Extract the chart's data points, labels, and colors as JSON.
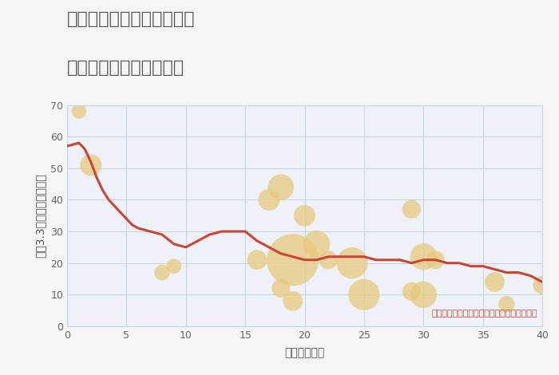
{
  "title_line1": "兵庫県豊岡市出石町桐野の",
  "title_line2": "築年数別中古戸建て価格",
  "xlabel": "築年数（年）",
  "ylabel": "坪（3.3㎡）単価（万円）",
  "background_color": "#f5f5f5",
  "plot_bg_color": "#eef2f8",
  "line_color": "#cc4433",
  "line_x": [
    0,
    0.5,
    1,
    1.5,
    2,
    2.5,
    3,
    3.5,
    4,
    4.5,
    5,
    5.5,
    6,
    7,
    8,
    9,
    10,
    11,
    12,
    13,
    14,
    15,
    16,
    17,
    18,
    19,
    20,
    21,
    22,
    23,
    24,
    25,
    26,
    27,
    28,
    29,
    30,
    31,
    32,
    33,
    34,
    35,
    36,
    37,
    38,
    39,
    40
  ],
  "line_y": [
    57,
    57.5,
    58,
    56,
    52,
    47,
    43,
    40,
    38,
    36,
    34,
    32,
    31,
    30,
    29,
    26,
    25,
    27,
    29,
    30,
    30,
    30,
    27,
    25,
    23,
    22,
    21,
    21,
    22,
    22,
    22,
    22,
    21,
    21,
    21,
    20,
    21,
    21,
    20,
    20,
    19,
    19,
    18,
    17,
    17,
    16,
    14
  ],
  "scatter_x": [
    1,
    2,
    8,
    9,
    16,
    17,
    18,
    18,
    19,
    19,
    20,
    21,
    22,
    24,
    25,
    29,
    29,
    30,
    30,
    31,
    36,
    37,
    40
  ],
  "scatter_y": [
    68,
    51,
    17,
    19,
    21,
    40,
    44,
    12,
    21,
    8,
    35,
    26,
    21,
    20,
    10,
    37,
    11,
    22,
    10,
    21,
    14,
    7,
    13
  ],
  "scatter_s": [
    180,
    380,
    200,
    180,
    320,
    380,
    550,
    280,
    2200,
    320,
    380,
    600,
    280,
    800,
    800,
    280,
    280,
    580,
    580,
    280,
    320,
    220,
    280
  ],
  "scatter_color": "#e8c87a",
  "scatter_alpha": 0.72,
  "annotation": "円の大きさは、取引のあった物件面積を示す",
  "annotation_color": "#cc4433",
  "xlim": [
    0,
    40
  ],
  "ylim": [
    0,
    70
  ],
  "xticks": [
    0,
    5,
    10,
    15,
    20,
    25,
    30,
    35,
    40
  ],
  "yticks": [
    0,
    10,
    20,
    30,
    40,
    50,
    60,
    70
  ],
  "grid_color": "#c5d5e5",
  "title_color": "#555555",
  "label_color": "#555555",
  "tick_color": "#666666",
  "title_fontsize": 16,
  "axis_label_fontsize": 10,
  "tick_fontsize": 9,
  "annotation_fontsize": 8
}
